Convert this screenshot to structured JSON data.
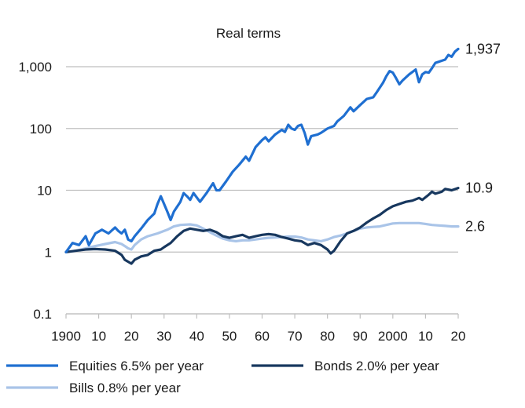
{
  "chart_data": {
    "type": "line",
    "title": "Real terms",
    "y_scale": "log",
    "ylim": [
      0.1,
      2500
    ],
    "xlim": [
      1900,
      2020
    ],
    "y_ticks": [
      {
        "value": 0.1,
        "label": "0.1"
      },
      {
        "value": 1,
        "label": "1"
      },
      {
        "value": 10,
        "label": "10"
      },
      {
        "value": 100,
        "label": "100"
      },
      {
        "value": 1000,
        "label": "1,000"
      }
    ],
    "x_ticks": [
      {
        "value": 1900,
        "label": "1900"
      },
      {
        "value": 1910,
        "label": "10"
      },
      {
        "value": 1920,
        "label": "20"
      },
      {
        "value": 1930,
        "label": "30"
      },
      {
        "value": 1940,
        "label": "40"
      },
      {
        "value": 1950,
        "label": "50"
      },
      {
        "value": 1960,
        "label": "60"
      },
      {
        "value": 1970,
        "label": "70"
      },
      {
        "value": 1980,
        "label": "80"
      },
      {
        "value": 1990,
        "label": "90"
      },
      {
        "value": 2000,
        "label": "2000"
      },
      {
        "value": 2010,
        "label": "10"
      },
      {
        "value": 2020,
        "label": "20"
      }
    ],
    "grid": "horizontal",
    "legend_position": "bottom",
    "series": [
      {
        "name": "Equities",
        "legend_label": "Equities  6.5% per year",
        "end_label": "1,937",
        "color": "#1f6fd1",
        "points": [
          [
            1900,
            1.0
          ],
          [
            1902,
            1.4
          ],
          [
            1904,
            1.3
          ],
          [
            1906,
            1.8
          ],
          [
            1907,
            1.3
          ],
          [
            1909,
            2.0
          ],
          [
            1911,
            2.3
          ],
          [
            1913,
            2.0
          ],
          [
            1915,
            2.5
          ],
          [
            1916,
            2.2
          ],
          [
            1917,
            2.0
          ],
          [
            1918,
            2.3
          ],
          [
            1919,
            1.6
          ],
          [
            1920,
            1.5
          ],
          [
            1921,
            1.8
          ],
          [
            1923,
            2.4
          ],
          [
            1925,
            3.3
          ],
          [
            1927,
            4.2
          ],
          [
            1928,
            6.0
          ],
          [
            1929,
            8.0
          ],
          [
            1931,
            4.5
          ],
          [
            1932,
            3.3
          ],
          [
            1933,
            4.5
          ],
          [
            1935,
            6.5
          ],
          [
            1936,
            9.0
          ],
          [
            1937,
            8.0
          ],
          [
            1938,
            7.0
          ],
          [
            1939,
            9.0
          ],
          [
            1941,
            6.5
          ],
          [
            1943,
            9.0
          ],
          [
            1945,
            13.0
          ],
          [
            1946,
            10.0
          ],
          [
            1947,
            10.0
          ],
          [
            1949,
            14.0
          ],
          [
            1951,
            20.0
          ],
          [
            1953,
            26.0
          ],
          [
            1955,
            35.0
          ],
          [
            1956,
            30.0
          ],
          [
            1958,
            50.0
          ],
          [
            1960,
            65.0
          ],
          [
            1961,
            72.0
          ],
          [
            1962,
            62.0
          ],
          [
            1964,
            80.0
          ],
          [
            1966,
            95.0
          ],
          [
            1967,
            88.0
          ],
          [
            1968,
            115.0
          ],
          [
            1969,
            100.0
          ],
          [
            1970,
            95.0
          ],
          [
            1971,
            110.0
          ],
          [
            1972,
            115.0
          ],
          [
            1973,
            85.0
          ],
          [
            1974,
            55.0
          ],
          [
            1975,
            75.0
          ],
          [
            1977,
            80.0
          ],
          [
            1978,
            85.0
          ],
          [
            1980,
            100.0
          ],
          [
            1982,
            110.0
          ],
          [
            1983,
            130.0
          ],
          [
            1985,
            160.0
          ],
          [
            1987,
            220.0
          ],
          [
            1988,
            190.0
          ],
          [
            1990,
            240.0
          ],
          [
            1992,
            300.0
          ],
          [
            1994,
            320.0
          ],
          [
            1995,
            380.0
          ],
          [
            1997,
            550.0
          ],
          [
            1998,
            700.0
          ],
          [
            1999,
            850.0
          ],
          [
            2000,
            800.0
          ],
          [
            2001,
            650.0
          ],
          [
            2002,
            520.0
          ],
          [
            2003,
            600.0
          ],
          [
            2005,
            750.0
          ],
          [
            2007,
            900.0
          ],
          [
            2008,
            560.0
          ],
          [
            2009,
            750.0
          ],
          [
            2010,
            820.0
          ],
          [
            2011,
            800.0
          ],
          [
            2012,
            950.0
          ],
          [
            2013,
            1150.0
          ],
          [
            2015,
            1250.0
          ],
          [
            2016,
            1300.0
          ],
          [
            2017,
            1550.0
          ],
          [
            2018,
            1450.0
          ],
          [
            2019,
            1750.0
          ],
          [
            2020,
            1937.0
          ]
        ]
      },
      {
        "name": "Bonds",
        "legend_label": "Bonds 2.0% per year",
        "end_label": "10.9",
        "color": "#17375e",
        "points": [
          [
            1900,
            1.0
          ],
          [
            1903,
            1.05
          ],
          [
            1906,
            1.1
          ],
          [
            1909,
            1.12
          ],
          [
            1912,
            1.1
          ],
          [
            1915,
            1.05
          ],
          [
            1917,
            0.9
          ],
          [
            1918,
            0.75
          ],
          [
            1920,
            0.65
          ],
          [
            1921,
            0.75
          ],
          [
            1923,
            0.85
          ],
          [
            1925,
            0.9
          ],
          [
            1927,
            1.05
          ],
          [
            1929,
            1.1
          ],
          [
            1930,
            1.2
          ],
          [
            1932,
            1.4
          ],
          [
            1934,
            1.8
          ],
          [
            1936,
            2.2
          ],
          [
            1938,
            2.4
          ],
          [
            1940,
            2.3
          ],
          [
            1942,
            2.2
          ],
          [
            1944,
            2.3
          ],
          [
            1946,
            2.1
          ],
          [
            1948,
            1.8
          ],
          [
            1950,
            1.7
          ],
          [
            1952,
            1.8
          ],
          [
            1954,
            1.9
          ],
          [
            1956,
            1.7
          ],
          [
            1958,
            1.8
          ],
          [
            1960,
            1.9
          ],
          [
            1962,
            1.95
          ],
          [
            1964,
            1.9
          ],
          [
            1966,
            1.75
          ],
          [
            1968,
            1.65
          ],
          [
            1970,
            1.55
          ],
          [
            1972,
            1.5
          ],
          [
            1974,
            1.3
          ],
          [
            1976,
            1.4
          ],
          [
            1978,
            1.3
          ],
          [
            1980,
            1.1
          ],
          [
            1981,
            0.95
          ],
          [
            1982,
            1.05
          ],
          [
            1984,
            1.5
          ],
          [
            1986,
            2.0
          ],
          [
            1988,
            2.2
          ],
          [
            1990,
            2.5
          ],
          [
            1992,
            3.0
          ],
          [
            1994,
            3.5
          ],
          [
            1996,
            4.0
          ],
          [
            1998,
            4.8
          ],
          [
            2000,
            5.5
          ],
          [
            2002,
            6.0
          ],
          [
            2004,
            6.5
          ],
          [
            2006,
            6.8
          ],
          [
            2008,
            7.5
          ],
          [
            2009,
            7.0
          ],
          [
            2011,
            8.5
          ],
          [
            2012,
            9.5
          ],
          [
            2013,
            8.8
          ],
          [
            2015,
            9.5
          ],
          [
            2016,
            10.5
          ],
          [
            2018,
            10.0
          ],
          [
            2020,
            10.9
          ]
        ]
      },
      {
        "name": "Bills",
        "legend_label": "Bills 0.8% per year",
        "end_label": "2.6",
        "color": "#a9c4e8",
        "points": [
          [
            1900,
            1.0
          ],
          [
            1903,
            1.05
          ],
          [
            1906,
            1.15
          ],
          [
            1909,
            1.25
          ],
          [
            1912,
            1.35
          ],
          [
            1915,
            1.45
          ],
          [
            1917,
            1.35
          ],
          [
            1918,
            1.25
          ],
          [
            1919,
            1.15
          ],
          [
            1920,
            1.1
          ],
          [
            1921,
            1.3
          ],
          [
            1923,
            1.6
          ],
          [
            1925,
            1.8
          ],
          [
            1928,
            2.0
          ],
          [
            1931,
            2.3
          ],
          [
            1933,
            2.6
          ],
          [
            1935,
            2.75
          ],
          [
            1938,
            2.8
          ],
          [
            1940,
            2.7
          ],
          [
            1942,
            2.4
          ],
          [
            1944,
            2.1
          ],
          [
            1946,
            1.85
          ],
          [
            1948,
            1.65
          ],
          [
            1950,
            1.55
          ],
          [
            1952,
            1.5
          ],
          [
            1954,
            1.55
          ],
          [
            1956,
            1.55
          ],
          [
            1958,
            1.6
          ],
          [
            1960,
            1.65
          ],
          [
            1962,
            1.7
          ],
          [
            1964,
            1.72
          ],
          [
            1966,
            1.75
          ],
          [
            1968,
            1.78
          ],
          [
            1970,
            1.78
          ],
          [
            1972,
            1.72
          ],
          [
            1974,
            1.6
          ],
          [
            1976,
            1.55
          ],
          [
            1978,
            1.5
          ],
          [
            1980,
            1.6
          ],
          [
            1982,
            1.75
          ],
          [
            1984,
            1.85
          ],
          [
            1986,
            2.0
          ],
          [
            1988,
            2.2
          ],
          [
            1990,
            2.4
          ],
          [
            1992,
            2.5
          ],
          [
            1994,
            2.55
          ],
          [
            1996,
            2.6
          ],
          [
            1998,
            2.75
          ],
          [
            2000,
            2.9
          ],
          [
            2002,
            2.95
          ],
          [
            2004,
            2.95
          ],
          [
            2006,
            2.95
          ],
          [
            2008,
            2.95
          ],
          [
            2010,
            2.85
          ],
          [
            2012,
            2.75
          ],
          [
            2014,
            2.7
          ],
          [
            2016,
            2.65
          ],
          [
            2018,
            2.6
          ],
          [
            2020,
            2.6
          ]
        ]
      }
    ]
  }
}
